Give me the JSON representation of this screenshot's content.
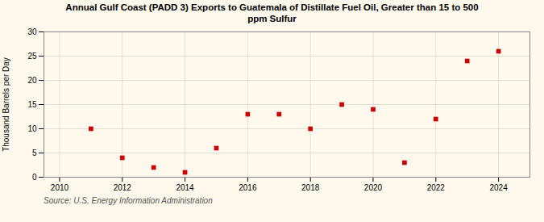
{
  "chart_data": {
    "type": "scatter",
    "title": "Annual Gulf Coast (PADD 3) Exports to Guatemala of Distillate Fuel Oil, Greater than 15 to 500\nppm Sulfur",
    "ylabel": "Thousand Barrels per Day",
    "source": "Source: U.S. Energy Information Administration",
    "x": [
      2011,
      2012,
      2013,
      2014,
      2015,
      2016,
      2017,
      2018,
      2019,
      2020,
      2021,
      2022,
      2023,
      2024
    ],
    "values": [
      10.0,
      4.0,
      2.0,
      1.0,
      6.0,
      13.0,
      13.0,
      10.0,
      15.0,
      14.0,
      3.0,
      12.0,
      24.0,
      26.0
    ],
    "xlim": [
      2009.5,
      2025
    ],
    "ylim": [
      0,
      30
    ],
    "xticks": [
      2010,
      2012,
      2014,
      2016,
      2018,
      2020,
      2022,
      2024
    ],
    "yticks": [
      0,
      5,
      10,
      15,
      20,
      25,
      30
    ],
    "color": "#cc0000",
    "marker": "square",
    "grid": true
  }
}
